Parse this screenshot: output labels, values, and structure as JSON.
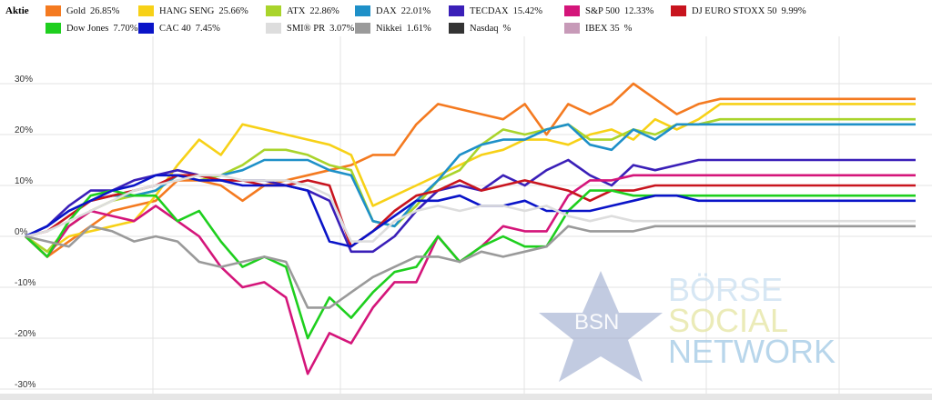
{
  "legend": {
    "title": "Aktie",
    "items": [
      {
        "name": "Gold",
        "value": "26.85%",
        "color": "#f47a20"
      },
      {
        "name": "HANG SENG",
        "value": "25.66%",
        "color": "#f7d117"
      },
      {
        "name": "ATX",
        "value": "22.86%",
        "color": "#a9d42b"
      },
      {
        "name": "DAX",
        "value": "22.01%",
        "color": "#1e90c8"
      },
      {
        "name": "TECDAX",
        "value": "15.42%",
        "color": "#3a1fb8"
      },
      {
        "name": "S&P 500",
        "value": "12.33%",
        "color": "#d4157a"
      },
      {
        "name": "DJ EURO STOXX 50",
        "value": "9.99%",
        "color": "#c8141e"
      },
      {
        "name": "Dow Jones",
        "value": "7.70%",
        "color": "#1ecf1e"
      },
      {
        "name": "CAC 40",
        "value": "7.45%",
        "color": "#0a14c8"
      },
      {
        "name": "SMI® PR",
        "value": "3.07%",
        "color": "#dddddd"
      },
      {
        "name": "Nikkei",
        "value": "1.61%",
        "color": "#9a9a9a"
      },
      {
        "name": "Nasdaq",
        "value": "%",
        "color": "#333333"
      },
      {
        "name": "IBEX 35",
        "value": "%",
        "color": "#c79ab8"
      }
    ]
  },
  "watermark": {
    "logo_text": "BSN",
    "line1": "BÖRSE",
    "line2": "SOCIAL",
    "line3": "NETWORK"
  },
  "chart_data": {
    "type": "line",
    "ylim": [
      -30,
      33
    ],
    "yticks": [
      30,
      20,
      10,
      0,
      -10,
      -20,
      -30
    ],
    "ytick_labels": [
      "30%",
      "20%",
      "10%",
      "0%",
      "-10%",
      "-20%",
      "-30%"
    ],
    "grid": true,
    "legend_position": "top",
    "x": [
      0,
      1,
      2,
      3,
      4,
      5,
      6,
      7,
      8,
      9,
      10,
      11,
      12,
      13,
      14,
      15,
      16,
      17,
      18,
      19,
      20,
      21,
      22,
      23,
      24,
      25,
      26,
      27,
      28,
      29,
      30,
      31,
      32,
      33,
      34,
      35,
      36,
      37,
      38,
      39,
      40,
      41
    ],
    "series": [
      {
        "name": "Gold",
        "color": "#f47a20",
        "values": [
          0,
          -4,
          -1,
          2,
          5,
          6,
          7,
          11,
          11,
          10,
          7,
          10,
          11,
          12,
          13,
          14,
          16,
          16,
          22,
          26,
          25,
          24,
          23,
          26,
          20,
          26,
          24,
          26,
          30,
          27,
          24,
          26,
          27,
          27,
          27,
          27,
          27,
          27,
          27,
          27,
          27,
          27
        ]
      },
      {
        "name": "HANG SENG",
        "color": "#f7d117",
        "values": [
          0,
          -3,
          0,
          1,
          2,
          3,
          8,
          14,
          19,
          16,
          22,
          21,
          20,
          19,
          18,
          16,
          6,
          8,
          10,
          12,
          14,
          16,
          17,
          19,
          19,
          18,
          20,
          21,
          19,
          23,
          21,
          23,
          26,
          26,
          26,
          26,
          26,
          26,
          26,
          26,
          26,
          26
        ]
      },
      {
        "name": "ATX",
        "color": "#a9d42b",
        "values": [
          0,
          -3,
          2,
          5,
          7,
          8,
          9,
          12,
          11,
          12,
          14,
          17,
          17,
          16,
          14,
          13,
          3,
          2,
          6,
          11,
          13,
          18,
          21,
          20,
          21,
          22,
          19,
          19,
          21,
          20,
          22,
          22,
          23,
          23,
          23,
          23,
          23,
          23,
          23,
          23,
          23,
          23
        ]
      },
      {
        "name": "DAX",
        "color": "#1e90c8",
        "values": [
          0,
          2,
          5,
          7,
          8,
          8,
          9,
          12,
          12,
          12,
          13,
          15,
          15,
          15,
          13,
          12,
          3,
          2,
          7,
          11,
          16,
          18,
          19,
          19,
          21,
          22,
          18,
          17,
          21,
          19,
          22,
          22,
          22,
          22,
          22,
          22,
          22,
          22,
          22,
          22,
          22,
          22
        ]
      },
      {
        "name": "TECDAX",
        "color": "#3a1fb8",
        "values": [
          0,
          2,
          6,
          9,
          9,
          11,
          12,
          13,
          12,
          11,
          11,
          11,
          10,
          9,
          7,
          -3,
          -3,
          0,
          5,
          9,
          10,
          9,
          12,
          10,
          13,
          15,
          12,
          10,
          14,
          13,
          14,
          15,
          15,
          15,
          15,
          15,
          15,
          15,
          15,
          15,
          15,
          15
        ]
      },
      {
        "name": "S&P 500",
        "color": "#d4157a",
        "values": [
          0,
          -4,
          2,
          5,
          4,
          3,
          6,
          3,
          0,
          -6,
          -10,
          -9,
          -12,
          -27,
          -19,
          -21,
          -14,
          -9,
          -9,
          0,
          -5,
          -2,
          2,
          1,
          1,
          8,
          11,
          11,
          12,
          12,
          12,
          12,
          12,
          12,
          12,
          12,
          12,
          12,
          12,
          12,
          12,
          12
        ]
      },
      {
        "name": "DJ EURO STOXX 50",
        "color": "#c8141e",
        "values": [
          0,
          1,
          4,
          7,
          8,
          9,
          10,
          12,
          12,
          11,
          11,
          10,
          10,
          11,
          10,
          -2,
          1,
          5,
          8,
          9,
          11,
          9,
          10,
          11,
          10,
          9,
          7,
          9,
          9,
          10,
          10,
          10,
          10,
          10,
          10,
          10,
          10,
          10,
          10,
          10,
          10,
          10
        ]
      },
      {
        "name": "Dow Jones",
        "color": "#1ecf1e",
        "values": [
          0,
          -4,
          3,
          8,
          9,
          8,
          8,
          3,
          5,
          -1,
          -6,
          -4,
          -6,
          -20,
          -12,
          -16,
          -11,
          -7,
          -6,
          0,
          -5,
          -2,
          0,
          -2,
          -2,
          5,
          9,
          9,
          8,
          8,
          8,
          8,
          8,
          8,
          8,
          8,
          8,
          8,
          8,
          8,
          8,
          8
        ]
      },
      {
        "name": "CAC 40",
        "color": "#0a14c8",
        "values": [
          0,
          2,
          5,
          7,
          9,
          10,
          12,
          12,
          11,
          11,
          10,
          10,
          10,
          9,
          -1,
          -2,
          1,
          4,
          7,
          7,
          8,
          6,
          6,
          7,
          5,
          5,
          5,
          6,
          7,
          8,
          8,
          7,
          7,
          7,
          7,
          7,
          7,
          7,
          7,
          7,
          7,
          7
        ]
      },
      {
        "name": "SMI® PR",
        "color": "#dddddd",
        "values": [
          0,
          1,
          3,
          5,
          7,
          9,
          10,
          11,
          12,
          12,
          11,
          11,
          11,
          10,
          8,
          -1,
          -1,
          3,
          5,
          6,
          5,
          6,
          6,
          5,
          6,
          4,
          3,
          4,
          3,
          3,
          3,
          3,
          3,
          3,
          3,
          3,
          3,
          3,
          3,
          3,
          3,
          3
        ]
      },
      {
        "name": "Nikkei",
        "color": "#9a9a9a",
        "values": [
          0,
          -1,
          -2,
          2,
          1,
          -1,
          0,
          -1,
          -5,
          -6,
          -5,
          -4,
          -5,
          -14,
          -14,
          -11,
          -8,
          -6,
          -4,
          -4,
          -5,
          -3,
          -4,
          -3,
          -2,
          2,
          1,
          1,
          1,
          2,
          2,
          2,
          2,
          2,
          2,
          2,
          2,
          2,
          2,
          2,
          2,
          2
        ]
      }
    ]
  }
}
